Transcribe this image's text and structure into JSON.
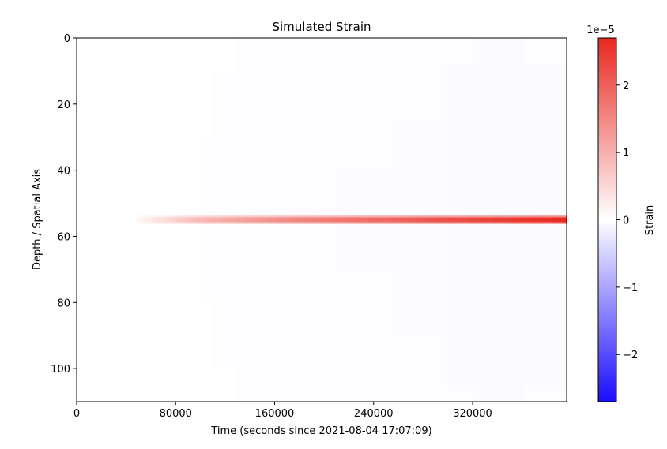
{
  "chart_data": {
    "type": "heatmap",
    "title": "Simulated Strain",
    "xlabel": "Time (seconds since 2021-08-04 17:07:09)",
    "ylabel": "Depth / Spatial Axis",
    "xlim": [
      0,
      396000
    ],
    "ylim": [
      110,
      0
    ],
    "y_inverted": true,
    "x_ticks": [
      {
        "value": 0,
        "label": "0"
      },
      {
        "value": 80000,
        "label": "80000"
      },
      {
        "value": 160000,
        "label": "160000"
      },
      {
        "value": 240000,
        "label": "240000"
      },
      {
        "value": 320000,
        "label": "320000"
      }
    ],
    "y_ticks": [
      {
        "value": 0,
        "label": "0"
      },
      {
        "value": 20,
        "label": "20"
      },
      {
        "value": 40,
        "label": "40"
      },
      {
        "value": 60,
        "label": "60"
      },
      {
        "value": 80,
        "label": "80"
      },
      {
        "value": 100,
        "label": "100"
      }
    ],
    "colormap": "bwr",
    "colors": {
      "low": "#1a0dff",
      "mid": "#ffffff",
      "high": "#e8281f"
    },
    "colorbar": {
      "label": "Strain",
      "offset_text": "1e−5",
      "range": [
        -2.7e-05,
        2.7e-05
      ],
      "ticks": [
        {
          "value": 2e-05,
          "label": "2"
        },
        {
          "value": 1e-05,
          "label": "1"
        },
        {
          "value": 0,
          "label": "0"
        },
        {
          "value": -1e-05,
          "label": "−1"
        },
        {
          "value": -2e-05,
          "label": "−2"
        }
      ]
    },
    "strain_band": {
      "center_depth": 55,
      "width_depth": 2.5,
      "points": [
        {
          "time": 48000,
          "strain": 1e-06
        },
        {
          "time": 75000,
          "strain": 5e-06
        },
        {
          "time": 100000,
          "strain": 9e-06
        },
        {
          "time": 160000,
          "strain": 1.4e-05
        },
        {
          "time": 210000,
          "strain": 1.7e-05
        },
        {
          "time": 250000,
          "strain": 1.9e-05
        },
        {
          "time": 300000,
          "strain": 2.2e-05
        },
        {
          "time": 360000,
          "strain": 2.5e-05
        },
        {
          "time": 396000,
          "strain": 2.7e-05
        }
      ]
    },
    "background_regions": [
      {
        "t0": 130000,
        "t1": 396000,
        "d0": 0,
        "d1": 110,
        "strain": -2e-07
      },
      {
        "t0": 110000,
        "t1": 396000,
        "d0": 10,
        "d1": 100,
        "strain": -2e-07
      },
      {
        "t0": 100000,
        "t1": 396000,
        "d0": 30,
        "d1": 80,
        "strain": -2e-07
      },
      {
        "t0": 210000,
        "t1": 396000,
        "d0": 40,
        "d1": 70,
        "strain": -4e-07
      },
      {
        "t0": 255000,
        "t1": 396000,
        "d0": 25,
        "d1": 90,
        "strain": -4e-07
      },
      {
        "t0": 300000,
        "t1": 396000,
        "d0": 8,
        "d1": 105,
        "strain": -5e-07
      },
      {
        "t0": 320000,
        "t1": 360000,
        "d0": 0,
        "d1": 110,
        "strain": -6e-07
      }
    ]
  }
}
